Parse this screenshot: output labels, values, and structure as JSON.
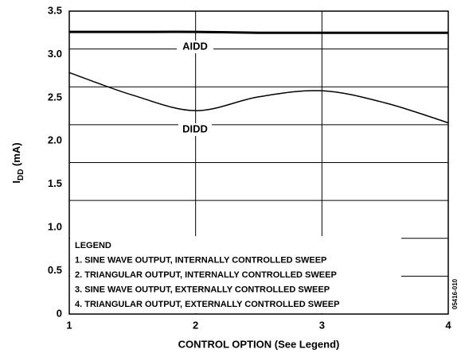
{
  "chart_data": {
    "type": "line",
    "xlabel": "CONTROL OPTION (See Legend)",
    "ylabel": {
      "main": "I",
      "sub": "DD",
      "rest": " (mA)"
    },
    "xlim": [
      1,
      4
    ],
    "xticks": [
      1,
      2,
      3,
      4
    ],
    "ylim": [
      0,
      3.5
    ],
    "yticks": [
      {
        "value": 0,
        "label": "0"
      },
      {
        "value": 0.5,
        "label": "0.5"
      },
      {
        "value": 1,
        "label": "1.0"
      },
      {
        "value": 1.5,
        "label": "1.5"
      },
      {
        "value": 2,
        "label": "2.0"
      },
      {
        "value": 2.5,
        "label": "2.5"
      },
      {
        "value": 3,
        "label": "3.0"
      },
      {
        "value": 3.5,
        "label": "3.5"
      }
    ],
    "ygrid": [
      0.4375,
      0.875,
      1.3125,
      1.75,
      2.1875,
      2.625,
      3.0625
    ],
    "xgrid": [
      2,
      3
    ],
    "grid": true,
    "x": [
      1,
      1.5,
      2,
      2.5,
      3,
      3.5,
      4
    ],
    "series": [
      {
        "name": "AIDD",
        "color": "#000000",
        "values": [
          3.26,
          3.26,
          3.26,
          3.25,
          3.25,
          3.25,
          3.25
        ]
      },
      {
        "name": "DIDD",
        "color": "#000000",
        "values": [
          2.79,
          2.53,
          2.35,
          2.51,
          2.58,
          2.44,
          2.21
        ]
      }
    ],
    "legend": {
      "title": "LEGEND",
      "items": [
        "1. SINE WAVE OUTPUT, INTERNALLY CONTROLLED SWEEP",
        "2. TRIANGULAR OUTPUT, INTERNALLY CONTROLLED SWEEP",
        "3. SINE WAVE OUTPUT, EXTERNALLY CONTROLLED SWEEP",
        "4. TRIANGULAR OUTPUT, EXTERNALLY CONTROLLED SWEEP"
      ]
    },
    "figure_id": "05416-010"
  }
}
